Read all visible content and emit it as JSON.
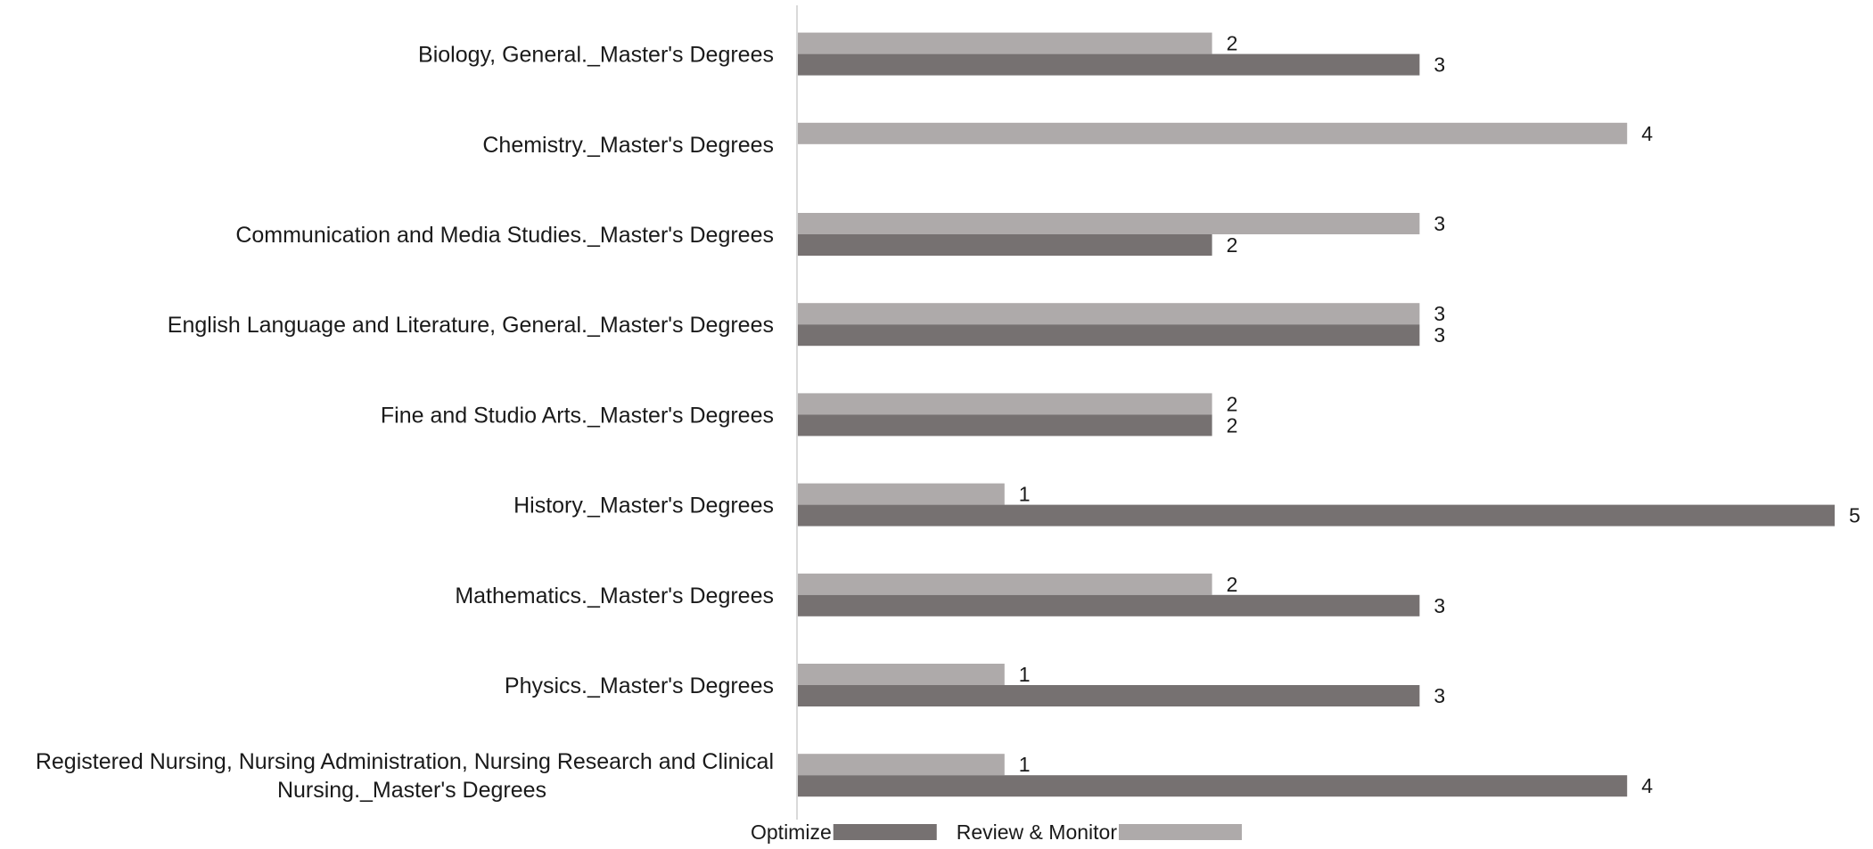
{
  "chart_data": {
    "type": "bar",
    "orientation": "horizontal",
    "categories": [
      [
        "Biology, General._Master's Degrees"
      ],
      [
        "Chemistry._Master's Degrees"
      ],
      [
        "Communication and Media Studies._Master's Degrees"
      ],
      [
        "English Language and Literature, General._Master's Degrees"
      ],
      [
        "Fine and Studio Arts._Master's Degrees"
      ],
      [
        "History._Master's Degrees"
      ],
      [
        "Mathematics._Master's Degrees"
      ],
      [
        "Physics._Master's Degrees"
      ],
      [
        "Registered Nursing, Nursing Administration, Nursing Research and Clinical",
        "Nursing._Master's Degrees"
      ]
    ],
    "series": [
      {
        "name": "Review & Monitor",
        "color": "#aeaaaa",
        "values": [
          2,
          4,
          3,
          3,
          2,
          1,
          2,
          1,
          1
        ]
      },
      {
        "name": "Optimize",
        "color": "#767171",
        "values": [
          3,
          null,
          2,
          3,
          2,
          5,
          3,
          3,
          4
        ]
      }
    ],
    "xlim": [
      0,
      5
    ],
    "grid": false,
    "legend_position": "bottom",
    "legend_order": [
      "Optimize",
      "Review & Monitor"
    ],
    "axis_color": "#d9d9d9"
  }
}
